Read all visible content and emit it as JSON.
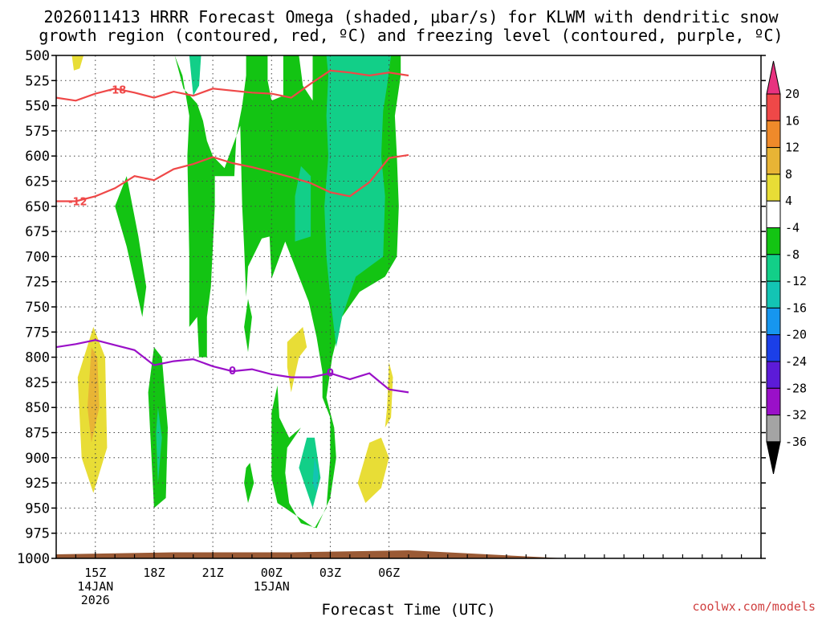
{
  "chart_data": {
    "type": "heatmap",
    "title_line1": "2026011413 HRRR Forecast Omega (shaded, μbar/s) for KLWM with dendritic snow",
    "title_line2": "growth region (contoured, red, ºC) and freezing level (contoured, purple, ºC)",
    "xlabel": "Forecast Time (UTC)",
    "credit": "coolwx.com/models",
    "x_range_hours": [
      13,
      49
    ],
    "x_ticks": [
      {
        "hour": 15,
        "lines": [
          "15Z",
          "14JAN",
          "2026"
        ]
      },
      {
        "hour": 18,
        "lines": [
          "18Z"
        ]
      },
      {
        "hour": 21,
        "lines": [
          "21Z"
        ]
      },
      {
        "hour": 24,
        "lines": [
          "00Z",
          "15JAN"
        ]
      },
      {
        "hour": 27,
        "lines": [
          "03Z"
        ]
      },
      {
        "hour": 30,
        "lines": [
          "06Z"
        ]
      }
    ],
    "y_range_hpa": [
      500,
      1000
    ],
    "y_ticks": [
      "500",
      "525",
      "550",
      "575",
      "600",
      "625",
      "650",
      "675",
      "700",
      "725",
      "750",
      "775",
      "800",
      "825",
      "850",
      "875",
      "900",
      "925",
      "950",
      "975",
      "1000"
    ],
    "colorbar": {
      "levels": [
        "20",
        "16",
        "12",
        "8",
        "4",
        "-4",
        "-8",
        "-12",
        "-16",
        "-20",
        "-24",
        "-28",
        "-32",
        "-36"
      ],
      "colors": [
        "#e8327f",
        "#ef4848",
        "#ef8a2a",
        "#e8b435",
        "#e8dd36",
        "#ffffff",
        "#13c413",
        "#12cf88",
        "#13c4b4",
        "#1696ef",
        "#1b3fe8",
        "#5c1bd8",
        "#9a10c8",
        "#a4a4a4",
        "#000000"
      ]
    },
    "contours": [
      {
        "name": "-18 °C",
        "label": "-18",
        "color": "#ef4848",
        "points": [
          [
            13,
            542
          ],
          [
            14,
            545
          ],
          [
            15,
            538
          ],
          [
            16,
            533
          ],
          [
            17,
            537
          ],
          [
            18,
            542
          ],
          [
            19,
            536
          ],
          [
            20,
            540
          ],
          [
            21,
            533
          ],
          [
            22,
            535
          ],
          [
            23,
            537
          ],
          [
            24,
            538
          ],
          [
            25,
            542
          ],
          [
            26,
            528
          ],
          [
            27,
            515
          ],
          [
            28,
            517
          ],
          [
            29,
            520
          ],
          [
            30,
            517
          ],
          [
            31,
            520
          ]
        ]
      },
      {
        "name": "-12 °C",
        "label": "-12",
        "color": "#ef4848",
        "points": [
          [
            13,
            645
          ],
          [
            14,
            645
          ],
          [
            15,
            640
          ],
          [
            16,
            632
          ],
          [
            17,
            620
          ],
          [
            18,
            624
          ],
          [
            19,
            613
          ],
          [
            20,
            608
          ],
          [
            21,
            601
          ],
          [
            22,
            607
          ],
          [
            23,
            611
          ],
          [
            24,
            616
          ],
          [
            25,
            621
          ],
          [
            26,
            627
          ],
          [
            27,
            636
          ],
          [
            28,
            640
          ],
          [
            29,
            626
          ],
          [
            30,
            602
          ],
          [
            31,
            599
          ]
        ]
      },
      {
        "name": "0 °C freezing level",
        "label": "0",
        "color": "#9a10c8",
        "points": [
          [
            13,
            790
          ],
          [
            14,
            787
          ],
          [
            15,
            783
          ],
          [
            16,
            788
          ],
          [
            17,
            793
          ],
          [
            18,
            808
          ],
          [
            19,
            804
          ],
          [
            20,
            802
          ],
          [
            21,
            809
          ],
          [
            22,
            814
          ],
          [
            23,
            812
          ],
          [
            24,
            817
          ],
          [
            25,
            820
          ],
          [
            26,
            820
          ],
          [
            27,
            816
          ],
          [
            28,
            822
          ],
          [
            29,
            816
          ],
          [
            30,
            832
          ],
          [
            31,
            835
          ]
        ]
      }
    ],
    "surface_pressure_hpa": [
      [
        13,
        996
      ],
      [
        16,
        995
      ],
      [
        19,
        994
      ],
      [
        22,
        994
      ],
      [
        25,
        994
      ],
      [
        28,
        993
      ],
      [
        31,
        992
      ]
    ],
    "omega_regions": [
      {
        "level": "weak_up",
        "value_range": [
          -8,
          -4
        ],
        "label": "upward -4 to -8 μbar/s",
        "points": [
          [
            19.05,
            500
          ],
          [
            19.5,
            533
          ],
          [
            20.2,
            548
          ],
          [
            20.5,
            565
          ],
          [
            20.7,
            585
          ],
          [
            21.0,
            600
          ],
          [
            21.6,
            612
          ],
          [
            22.2,
            580
          ],
          [
            22.5,
            550
          ],
          [
            22.7,
            520
          ],
          [
            22.7,
            500
          ],
          [
            23.8,
            500
          ],
          [
            23.8,
            525
          ],
          [
            24.0,
            545
          ],
          [
            24.6,
            540
          ],
          [
            24.6,
            500
          ],
          [
            25.4,
            500
          ],
          [
            25.6,
            530
          ],
          [
            26.1,
            545
          ],
          [
            26.1,
            500
          ],
          [
            30.6,
            500
          ],
          [
            30.6,
            520
          ],
          [
            30.3,
            560
          ],
          [
            30.4,
            600
          ],
          [
            30.5,
            650
          ],
          [
            30.4,
            700
          ],
          [
            29.8,
            720
          ],
          [
            28.5,
            735
          ],
          [
            27.6,
            760
          ],
          [
            27.1,
            800
          ],
          [
            26.8,
            840
          ],
          [
            27.2,
            870
          ],
          [
            27.3,
            900
          ],
          [
            27.0,
            940
          ],
          [
            26.3,
            970
          ],
          [
            25.5,
            965
          ],
          [
            24.9,
            945
          ],
          [
            24.7,
            915
          ],
          [
            24.8,
            890
          ],
          [
            25.5,
            870
          ],
          [
            24.9,
            880
          ],
          [
            24.4,
            860
          ],
          [
            24.3,
            828
          ],
          [
            24.0,
            855
          ],
          [
            24.0,
            920
          ],
          [
            24.3,
            945
          ],
          [
            24.7,
            950
          ],
          [
            26.2,
            970
          ],
          [
            26.8,
            950
          ],
          [
            27.0,
            900
          ],
          [
            27.0,
            860
          ],
          [
            26.6,
            840
          ],
          [
            26.6,
            815
          ],
          [
            26.3,
            780
          ],
          [
            25.9,
            745
          ],
          [
            25.1,
            705
          ],
          [
            24.7,
            685
          ],
          [
            24.0,
            722
          ],
          [
            23.9,
            680
          ],
          [
            23.5,
            682
          ],
          [
            22.8,
            710
          ],
          [
            22.7,
            740
          ],
          [
            22.6,
            690
          ],
          [
            22.5,
            650
          ],
          [
            22.4,
            570
          ],
          [
            22.2,
            580
          ],
          [
            22.1,
            620
          ],
          [
            21.1,
            620
          ],
          [
            21.1,
            650
          ],
          [
            20.9,
            730
          ],
          [
            20.7,
            760
          ],
          [
            20.7,
            800
          ],
          [
            20.3,
            800
          ],
          [
            20.2,
            760
          ],
          [
            19.8,
            770
          ],
          [
            19.8,
            700
          ],
          [
            19.7,
            600
          ],
          [
            19.8,
            560
          ],
          [
            19.45,
            520
          ]
        ]
      },
      {
        "level": "weak_up",
        "value_range": [
          -8,
          -4
        ],
        "label": "upward -4 to -8 μbar/s",
        "points": [
          [
            16.6,
            620
          ],
          [
            16.0,
            650
          ],
          [
            16.6,
            690
          ],
          [
            17.4,
            760
          ],
          [
            17.6,
            730
          ],
          [
            17.2,
            680
          ]
        ]
      },
      {
        "level": "weak_up",
        "value_range": [
          -8,
          -4
        ],
        "label": "upward -4 to -8 μbar/s",
        "points": [
          [
            18.0,
            790
          ],
          [
            17.7,
            835
          ],
          [
            18.0,
            950
          ],
          [
            18.6,
            940
          ],
          [
            18.7,
            870
          ],
          [
            18.4,
            800
          ]
        ]
      },
      {
        "level": "weak_up",
        "value_range": [
          -8,
          -4
        ],
        "label": "upward -4 to -8 μbar/s",
        "points": [
          [
            22.8,
            742
          ],
          [
            22.6,
            770
          ],
          [
            22.8,
            795
          ],
          [
            23.0,
            760
          ]
        ]
      },
      {
        "level": "weak_up",
        "value_range": [
          -8,
          -4
        ],
        "label": "upward -4 to -8 μbar/s",
        "points": [
          [
            22.7,
            910
          ],
          [
            22.6,
            925
          ],
          [
            22.8,
            945
          ],
          [
            23.1,
            925
          ],
          [
            22.9,
            905
          ]
        ]
      },
      {
        "level": "moderate_up",
        "value_range": [
          -12,
          -8
        ],
        "label": "upward -8 to -12 μbar/s",
        "points": [
          [
            26.8,
            500
          ],
          [
            30.1,
            500
          ],
          [
            29.9,
            530
          ],
          [
            29.7,
            555
          ],
          [
            29.6,
            600
          ],
          [
            29.8,
            640
          ],
          [
            29.7,
            700
          ],
          [
            28.3,
            720
          ],
          [
            27.6,
            760
          ],
          [
            27.3,
            790
          ],
          [
            27.0,
            740
          ],
          [
            26.8,
            700
          ],
          [
            26.7,
            650
          ],
          [
            26.9,
            600
          ],
          [
            26.8,
            560
          ],
          [
            26.9,
            520
          ]
        ]
      },
      {
        "level": "moderate_up",
        "value_range": [
          -12,
          -8
        ],
        "label": "upward -8 to -12 μbar/s",
        "points": [
          [
            19.8,
            500
          ],
          [
            20.4,
            500
          ],
          [
            20.3,
            530
          ],
          [
            20.0,
            540
          ]
        ]
      },
      {
        "level": "moderate_up",
        "value_range": [
          -12,
          -8
        ],
        "label": "upward -8 to -12 μbar/s",
        "points": [
          [
            25.5,
            610
          ],
          [
            25.2,
            640
          ],
          [
            25.2,
            685
          ],
          [
            26.0,
            680
          ],
          [
            26.0,
            620
          ]
        ]
      },
      {
        "level": "moderate_up",
        "value_range": [
          -12,
          -8
        ],
        "label": "upward -8 to -12 μbar/s",
        "points": [
          [
            18.2,
            850
          ],
          [
            18.1,
            875
          ],
          [
            18.2,
            925
          ],
          [
            18.4,
            880
          ]
        ]
      },
      {
        "level": "moderate_up",
        "value_range": [
          -12,
          -8
        ],
        "label": "upward -8 to -12 μbar/s",
        "points": [
          [
            25.8,
            880
          ],
          [
            25.4,
            910
          ],
          [
            26.1,
            950
          ],
          [
            26.5,
            920
          ],
          [
            26.2,
            880
          ]
        ]
      },
      {
        "level": "strong_up",
        "value_range": [
          -16,
          -12
        ],
        "label": "upward -12 to -16 μbar/s",
        "points": [
          [
            26.2,
            900
          ],
          [
            26.1,
            925
          ],
          [
            26.3,
            935
          ],
          [
            26.4,
            915
          ]
        ]
      },
      {
        "level": "weak_down",
        "value_range": [
          4,
          8
        ],
        "label": "downward 4 to 8 μbar/s",
        "points": [
          [
            13.8,
            500
          ],
          [
            14.4,
            500
          ],
          [
            14.2,
            513
          ],
          [
            13.9,
            515
          ]
        ]
      },
      {
        "level": "weak_down",
        "value_range": [
          4,
          8
        ],
        "label": "downward 4 to 8 μbar/s",
        "points": [
          [
            14.9,
            770
          ],
          [
            14.1,
            820
          ],
          [
            14.3,
            900
          ],
          [
            14.9,
            935
          ],
          [
            15.6,
            890
          ],
          [
            15.5,
            800
          ]
        ]
      },
      {
        "level": "weak_down",
        "value_range": [
          4,
          8
        ],
        "label": "downward 4 to 8 μbar/s",
        "points": [
          [
            24.8,
            785
          ],
          [
            24.8,
            810
          ],
          [
            25.0,
            835
          ],
          [
            25.4,
            800
          ],
          [
            25.8,
            790
          ],
          [
            25.6,
            770
          ]
        ]
      },
      {
        "level": "weak_down",
        "value_range": [
          4,
          8
        ],
        "label": "downward 4 to 8 μbar/s",
        "points": [
          [
            30.0,
            805
          ],
          [
            29.9,
            850
          ],
          [
            29.8,
            870
          ],
          [
            30.1,
            860
          ],
          [
            30.2,
            820
          ]
        ]
      },
      {
        "level": "weak_down",
        "value_range": [
          4,
          8
        ],
        "label": "downward 4 to 8 μbar/s",
        "points": [
          [
            29.0,
            885
          ],
          [
            28.4,
            925
          ],
          [
            28.8,
            945
          ],
          [
            29.6,
            930
          ],
          [
            30.0,
            900
          ],
          [
            29.6,
            880
          ]
        ]
      },
      {
        "level": "moderate_down",
        "value_range": [
          8,
          12
        ],
        "label": "downward 8 to 12 μbar/s",
        "points": [
          [
            14.8,
            790
          ],
          [
            14.6,
            850
          ],
          [
            14.8,
            885
          ],
          [
            15.2,
            850
          ],
          [
            15.1,
            800
          ]
        ]
      }
    ]
  }
}
